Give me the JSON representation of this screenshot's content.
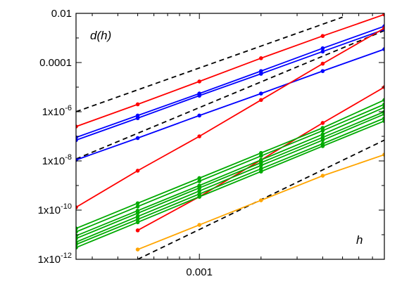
{
  "chart_data": {
    "type": "line",
    "title": "",
    "ylabel": "d(h)",
    "xlabel": "h",
    "x_scale": "log",
    "y_scale": "log",
    "xlim": [
      0.00025,
      0.008
    ],
    "ylim": [
      1e-12,
      0.01
    ],
    "grid": false,
    "legend": "none",
    "x_ticks": [
      {
        "value": 0.001,
        "label": "0.001"
      }
    ],
    "y_ticks": [
      {
        "value": 0.01,
        "label": "0.01"
      },
      {
        "value": 0.0001,
        "label": "0.0001"
      },
      {
        "value": 1e-06,
        "label": "1x10-6"
      },
      {
        "value": 1e-08,
        "label": "1x10-8"
      },
      {
        "value": 1e-10,
        "label": "1x10-10"
      },
      {
        "value": 1e-12,
        "label": "1x10-12"
      }
    ],
    "x": [
      0.00025,
      0.0005,
      0.001,
      0.002,
      0.004,
      0.008
    ],
    "series": [
      {
        "color": "#ff0000",
        "values": [
          2.5e-07,
          2e-06,
          1.7e-05,
          0.00015,
          0.0012,
          0.009
        ]
      },
      {
        "color": "#0000ff",
        "values": [
          9e-08,
          7e-07,
          5.5e-06,
          4.5e-05,
          0.00038,
          0.003
        ]
      },
      {
        "color": "#0000ff",
        "values": [
          7e-08,
          5.5e-07,
          4.5e-06,
          3.5e-05,
          0.00028,
          0.0022
        ]
      },
      {
        "color": "#0000ff",
        "values": [
          1.1e-08,
          8.5e-08,
          7e-07,
          5.5e-06,
          4.5e-05,
          0.00035
        ]
      },
      {
        "color": "#ff0000",
        "values": [
          1.3e-10,
          4e-09,
          1e-07,
          3e-06,
          9e-05,
          0.0025
        ]
      },
      {
        "color": "#ff0000",
        "values": [
          null,
          1.5e-11,
          3.5e-10,
          1.1e-08,
          3.5e-07,
          1e-05
        ]
      },
      {
        "color": "#ffa500",
        "values": [
          null,
          2.5e-12,
          2.5e-11,
          2.5e-10,
          2.5e-09,
          1.8e-08
        ]
      },
      {
        "color": "#00aa00",
        "values": [
          1.8e-11,
          1.9e-10,
          2e-09,
          2.1e-08,
          2.2e-07,
          3e-06
        ]
      },
      {
        "color": "#00aa00",
        "values": [
          1.3e-11,
          1.4e-10,
          1.5e-09,
          1.6e-08,
          1.7e-07,
          2e-06
        ]
      },
      {
        "color": "#00aa00",
        "values": [
          9e-12,
          9.5e-11,
          1e-09,
          1.1e-08,
          1.2e-07,
          1.5e-06
        ]
      },
      {
        "color": "#00aa00",
        "values": [
          7e-12,
          7.5e-11,
          8e-10,
          8.5e-09,
          9e-08,
          1e-06
        ]
      },
      {
        "color": "#00aa00",
        "values": [
          5e-12,
          5.5e-11,
          6e-10,
          6.5e-09,
          7e-08,
          8e-07
        ]
      },
      {
        "color": "#00aa00",
        "values": [
          4e-12,
          4.2e-11,
          4.5e-10,
          4.8e-09,
          5e-08,
          5.5e-07
        ]
      },
      {
        "color": "#00aa00",
        "values": [
          3e-12,
          3.2e-11,
          3.5e-10,
          3.7e-09,
          4e-08,
          4.2e-07
        ]
      }
    ],
    "reference_lines": [
      {
        "style": "dashed",
        "color": "#000000",
        "x_start": 0.00025,
        "x_end": 0.005,
        "y_start": 1e-06,
        "y_end": 0.007
      },
      {
        "style": "dashed",
        "color": "#000000",
        "x_start": 0.00025,
        "x_end": 0.008,
        "y_start": 1.2e-08,
        "y_end": 0.002
      },
      {
        "style": "dashed",
        "color": "#000000",
        "x_start": 0.0005,
        "x_end": 0.008,
        "y_start": 1e-12,
        "y_end": 7e-08
      }
    ]
  }
}
